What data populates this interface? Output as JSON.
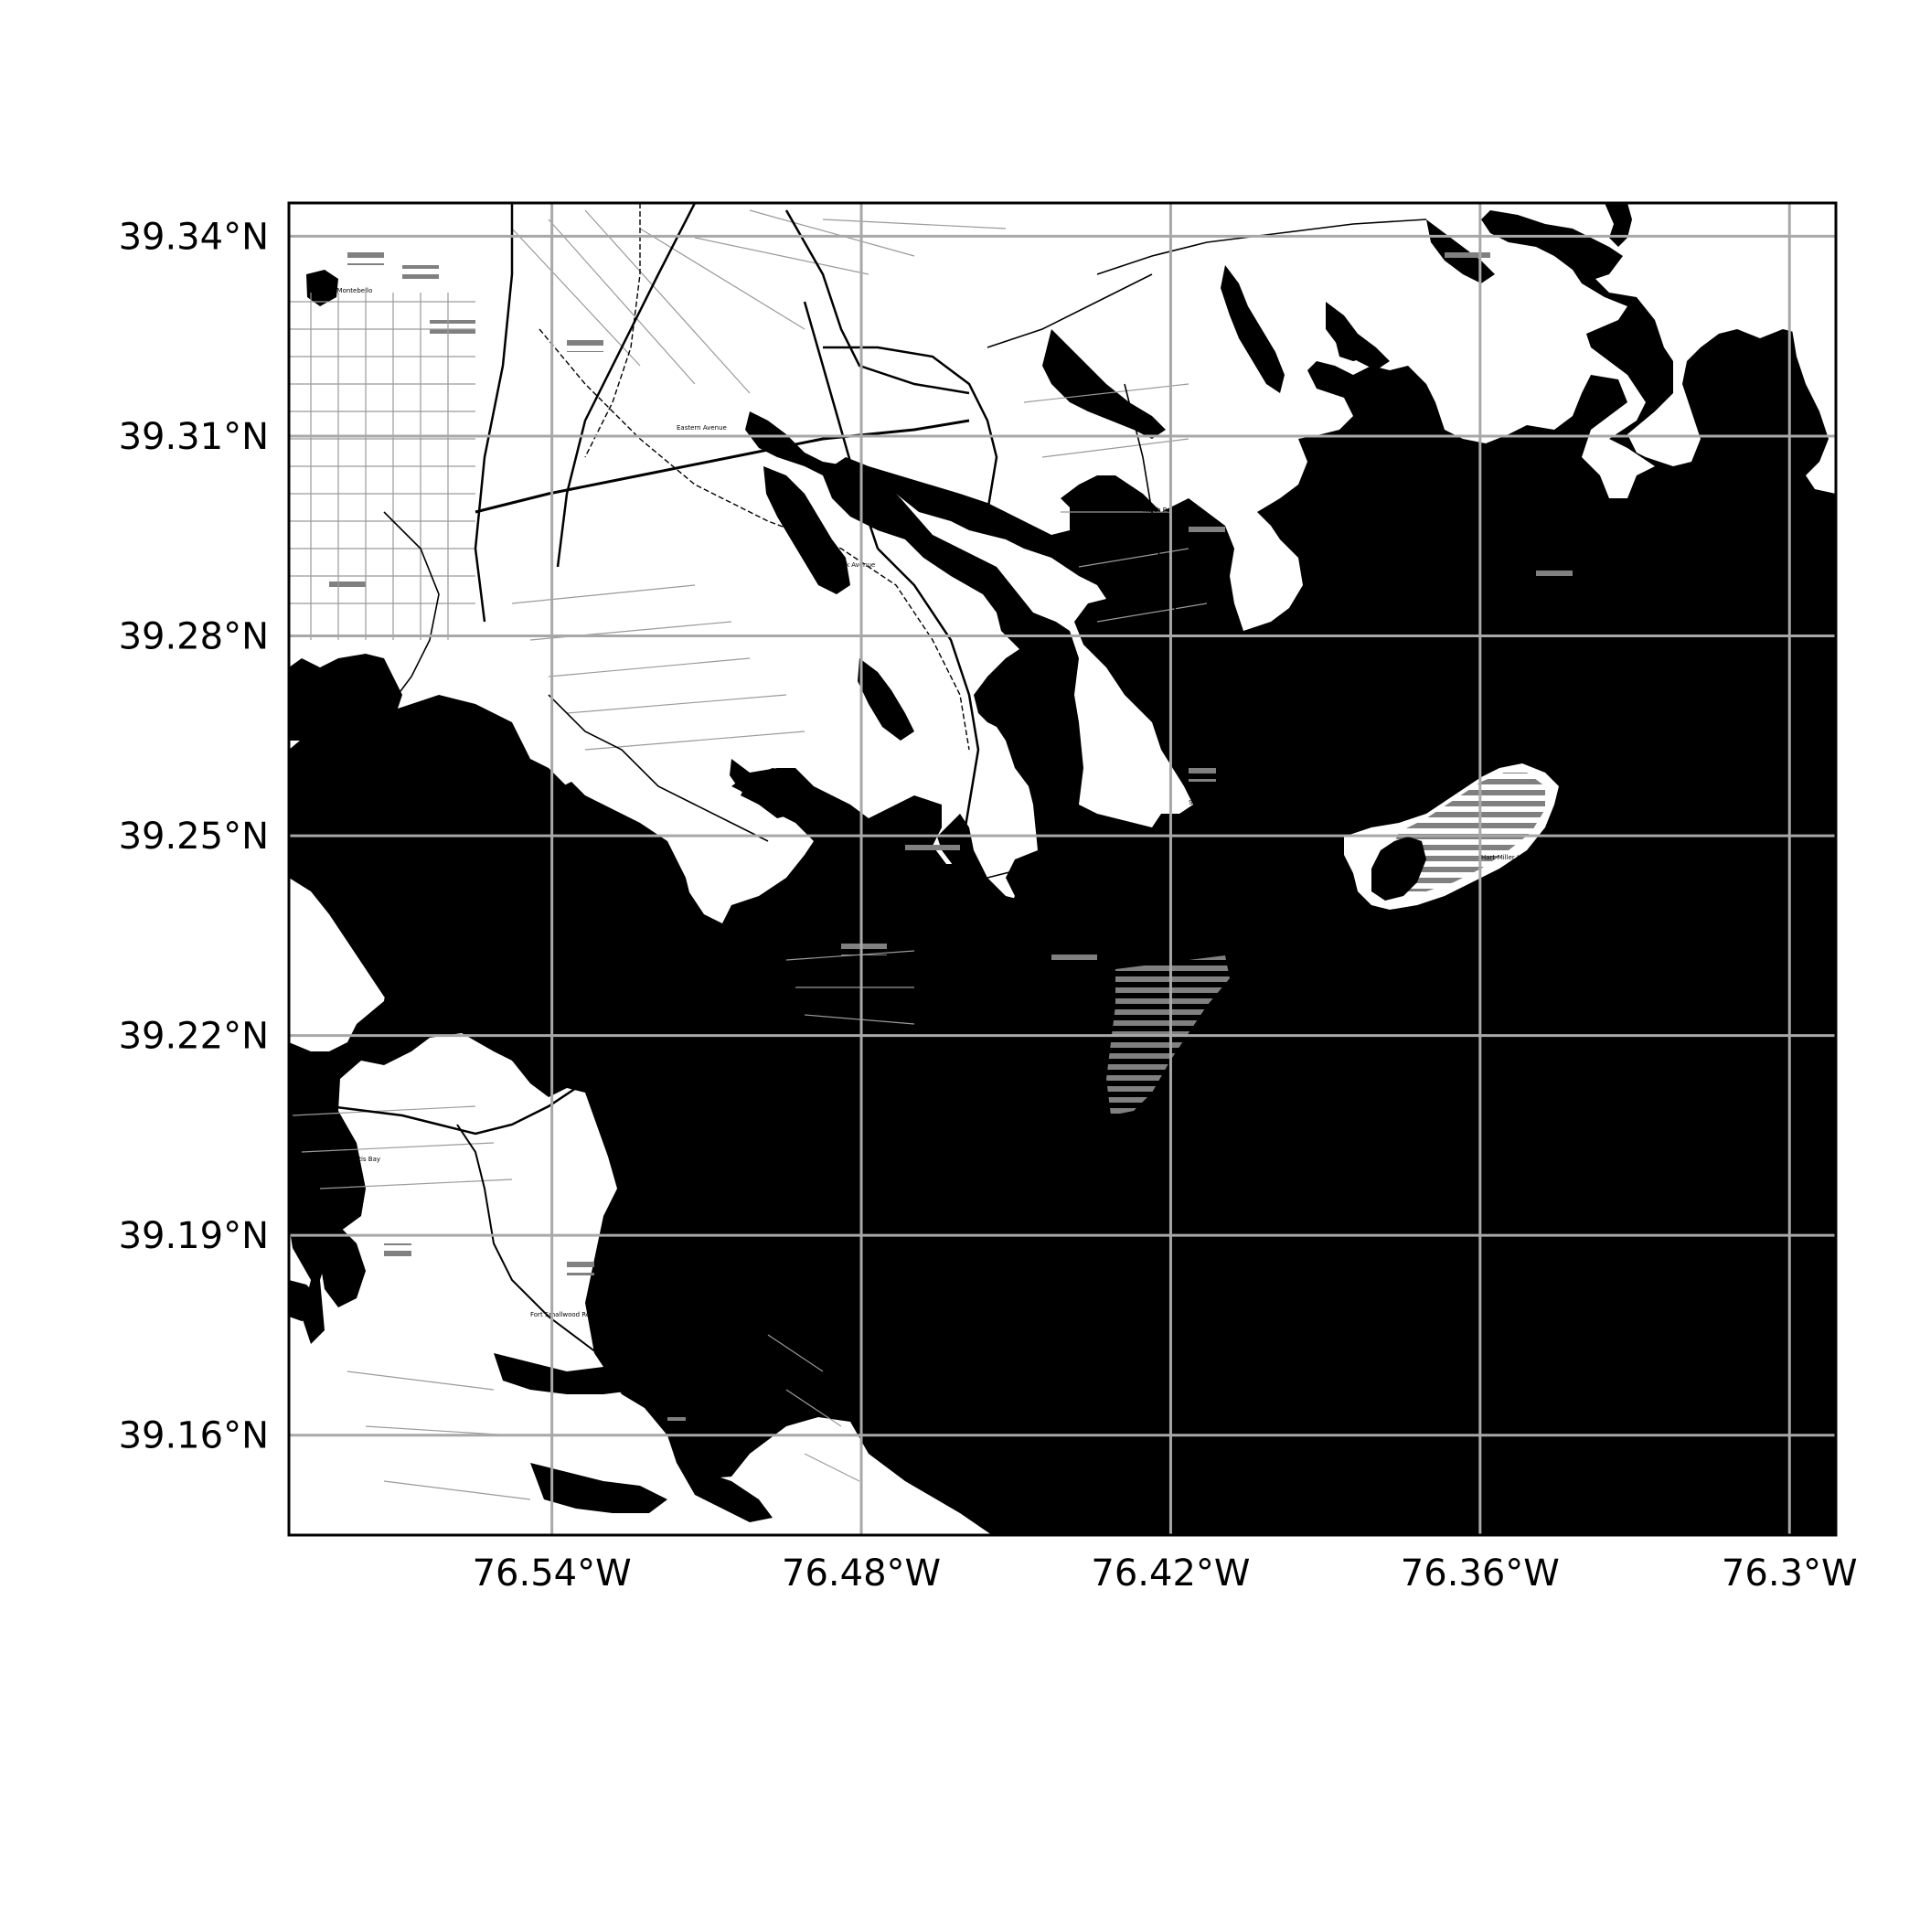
{
  "map": {
    "x_ticks": [
      "76.54°W",
      "76.48°W",
      "76.42°W",
      "76.36°W",
      "76.3°W"
    ],
    "y_ticks": [
      "39.34°N",
      "39.31°N",
      "39.28°N",
      "39.25°N",
      "39.22°N",
      "39.19°N",
      "39.16°N"
    ],
    "lon_range": [
      -76.591,
      -76.291
    ],
    "lat_range": [
      39.145,
      39.345
    ],
    "x_tick_values": [
      -76.54,
      -76.48,
      -76.42,
      -76.36,
      -76.3
    ],
    "y_tick_values": [
      39.34,
      39.31,
      39.28,
      39.25,
      39.22,
      39.19,
      39.16
    ],
    "grid": true,
    "colors": {
      "water": "#000000",
      "land": "#ffffff",
      "grid": "#a8a8a8",
      "hatch": "#808080"
    }
  }
}
